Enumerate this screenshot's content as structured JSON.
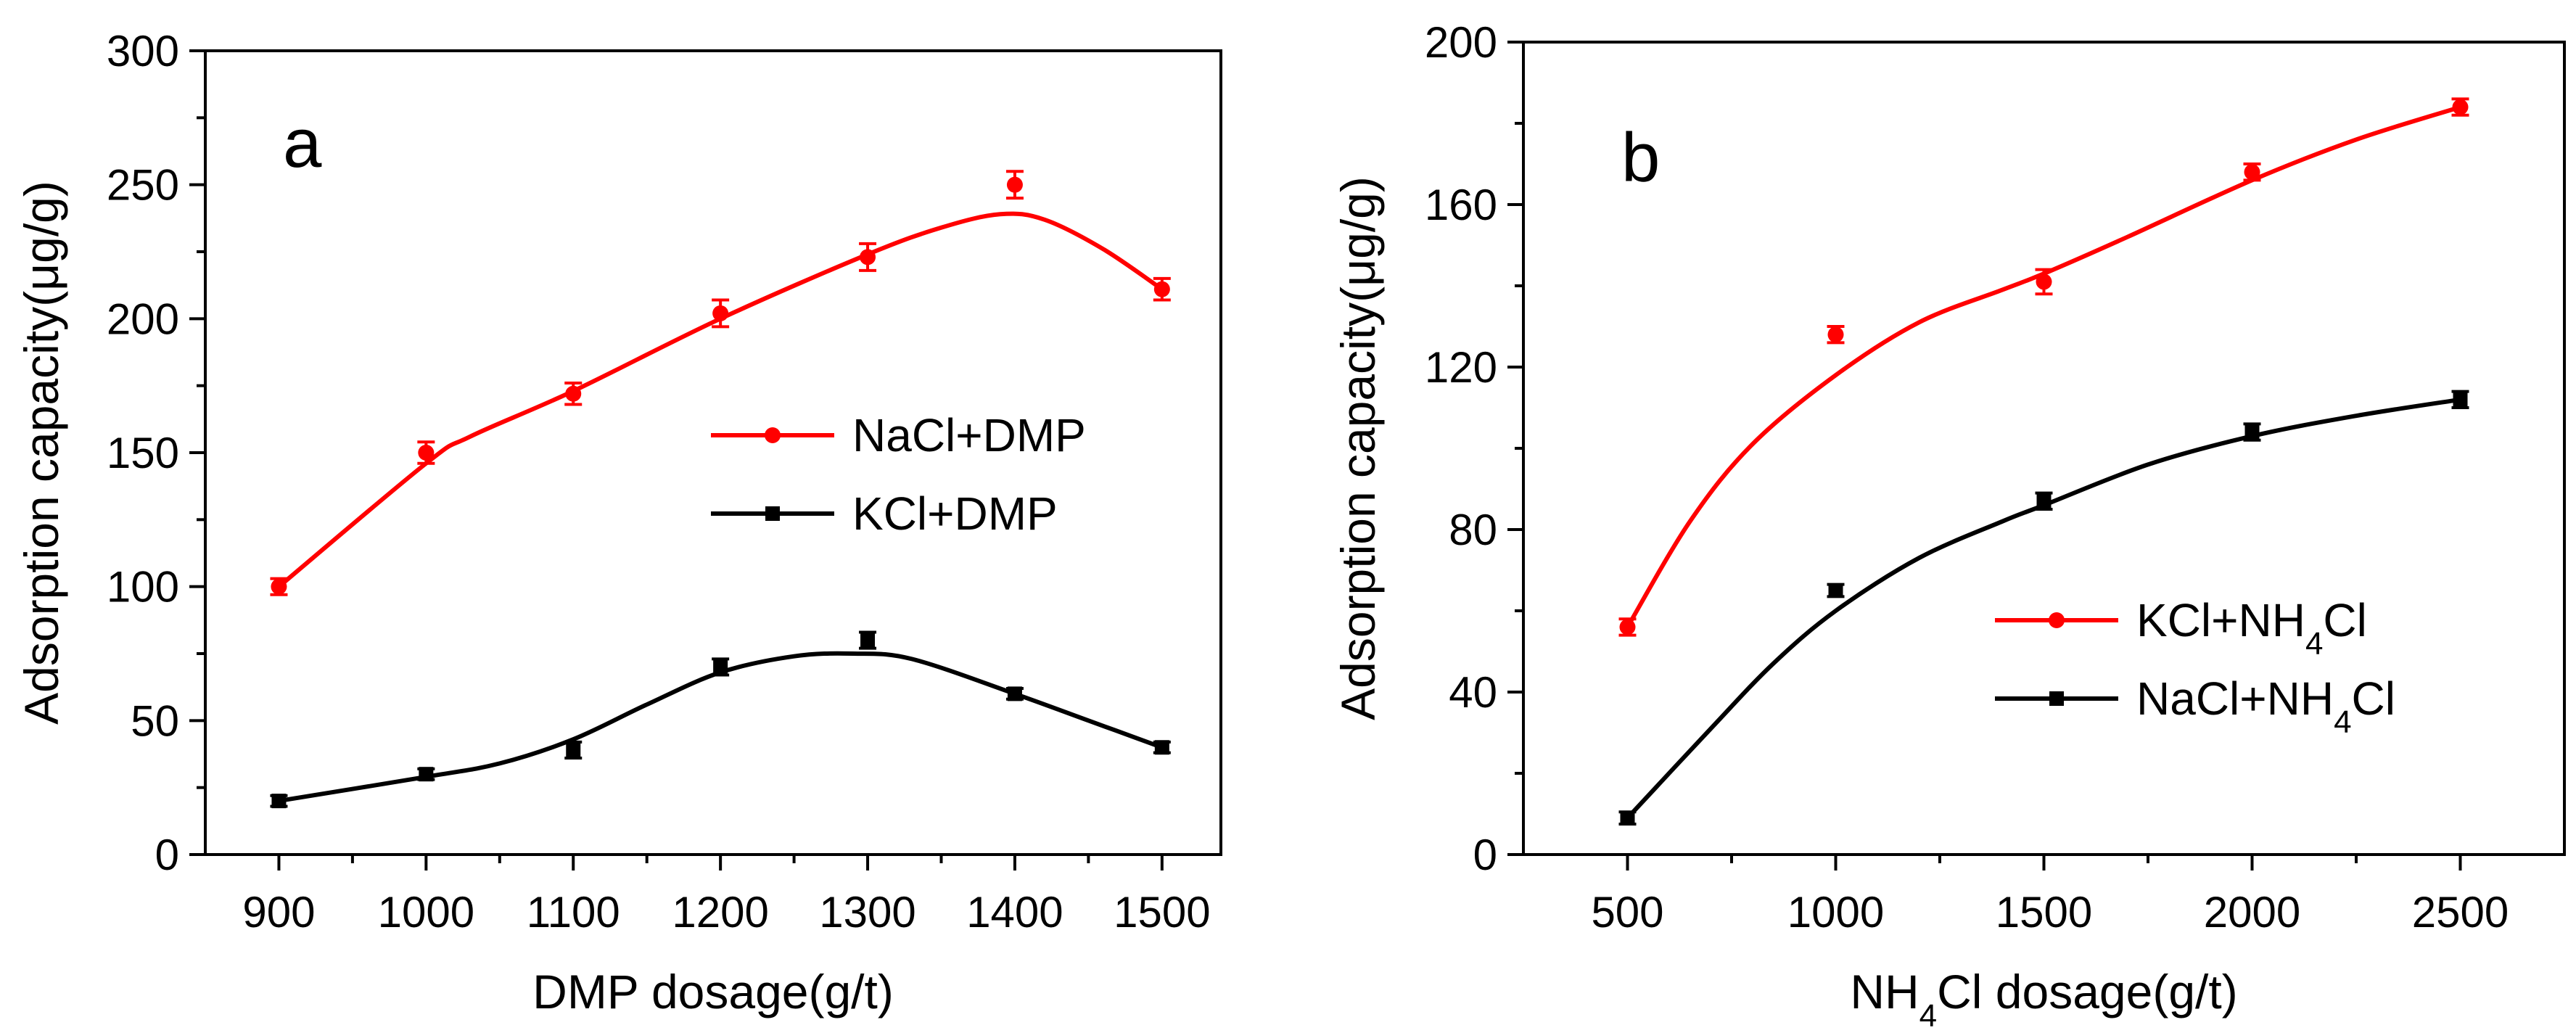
{
  "chart_data": [
    {
      "panel_label": "a",
      "type": "line",
      "xlabel": "DMP dosage(g/t)",
      "ylabel": "Adsorption capacity(μg/g)",
      "xlim": [
        850,
        1540
      ],
      "ylim": [
        0,
        300
      ],
      "x_ticks": [
        900,
        1000,
        1100,
        1200,
        1300,
        1400,
        1500
      ],
      "x_minor_ticks": [
        950,
        1050,
        1150,
        1250,
        1350,
        1450
      ],
      "y_ticks": [
        0,
        50,
        100,
        150,
        200,
        250,
        300
      ],
      "y_minor_ticks": [
        25,
        75,
        125,
        175,
        225,
        275
      ],
      "legend_position": "center-right",
      "series": [
        {
          "name": "NaCl+DMP",
          "label_main": "NaCl+DMP",
          "label_sub": "",
          "label_tail": "",
          "color": "#ff0000",
          "marker": "circle",
          "x": [
            900,
            1000,
            1100,
            1200,
            1300,
            1400,
            1500
          ],
          "values": [
            100,
            150,
            172,
            202,
            223,
            250,
            211
          ],
          "errors": [
            3,
            4,
            4,
            5,
            5,
            5,
            4
          ],
          "fit_x": [
            900,
            1000,
            1030,
            1100,
            1200,
            1300,
            1350,
            1390,
            1420,
            1460,
            1500
          ],
          "fit_y": [
            100,
            146,
            156,
            173,
            200,
            224,
            234,
            239,
            237,
            226,
            211
          ]
        },
        {
          "name": "KCl+DMP",
          "label_main": "KCl+DMP",
          "label_sub": "",
          "label_tail": "",
          "color": "#000000",
          "marker": "square",
          "x": [
            900,
            1000,
            1100,
            1200,
            1300,
            1400,
            1500
          ],
          "values": [
            20,
            30,
            39,
            70,
            80,
            60,
            40
          ],
          "errors": [
            2,
            2,
            3,
            3,
            3,
            2,
            2
          ],
          "fit_x": [
            900,
            1000,
            1050,
            1100,
            1150,
            1200,
            1250,
            1290,
            1330,
            1400,
            1450,
            1500
          ],
          "fit_y": [
            20,
            29,
            34,
            43,
            56,
            68,
            74,
            75,
            73,
            60,
            50,
            40
          ]
        }
      ]
    },
    {
      "panel_label": "b",
      "type": "line",
      "xlabel": "NH4Cl dosage(g/t)",
      "xlabel_parts": [
        "NH",
        "4",
        "Cl dosage(g/t)"
      ],
      "ylabel": "Adsorption capacity(μg/g)",
      "xlim": [
        250,
        2750
      ],
      "ylim": [
        0,
        200
      ],
      "x_ticks": [
        500,
        1000,
        1500,
        2000,
        2500
      ],
      "x_minor_ticks": [
        750,
        1250,
        1750,
        2250
      ],
      "y_ticks": [
        0,
        40,
        80,
        120,
        160,
        200
      ],
      "y_minor_ticks": [
        20,
        60,
        100,
        140,
        180
      ],
      "legend_position": "lower-right",
      "series": [
        {
          "name": "KCl+NH4Cl",
          "label_main": "KCl+NH",
          "label_sub": "4",
          "label_tail": "Cl",
          "color": "#ff0000",
          "marker": "circle",
          "x": [
            500,
            1000,
            1500,
            2000,
            2500
          ],
          "values": [
            56,
            128,
            141,
            168,
            184
          ],
          "errors": [
            2,
            2,
            3,
            2,
            2
          ],
          "fit_x": [
            500,
            650,
            800,
            1000,
            1200,
            1400,
            1500,
            1700,
            2000,
            2250,
            2500
          ],
          "fit_y": [
            56,
            82,
            101,
            118,
            131,
            139,
            143,
            152,
            166,
            176,
            184
          ]
        },
        {
          "name": "NaCl+NH4Cl",
          "label_main": "NaCl+NH",
          "label_sub": "4",
          "label_tail": "Cl",
          "color": "#000000",
          "marker": "square",
          "x": [
            500,
            1000,
            1500,
            2000,
            2500
          ],
          "values": [
            9,
            65,
            87,
            104,
            112
          ],
          "errors": [
            1.5,
            1.5,
            2,
            2,
            2
          ],
          "fit_x": [
            500,
            700,
            850,
            1000,
            1200,
            1400,
            1500,
            1750,
            2000,
            2250,
            2500
          ],
          "fit_y": [
            9,
            31,
            47,
            60,
            73,
            82,
            86,
            96,
            103,
            108,
            112
          ]
        }
      ]
    }
  ]
}
